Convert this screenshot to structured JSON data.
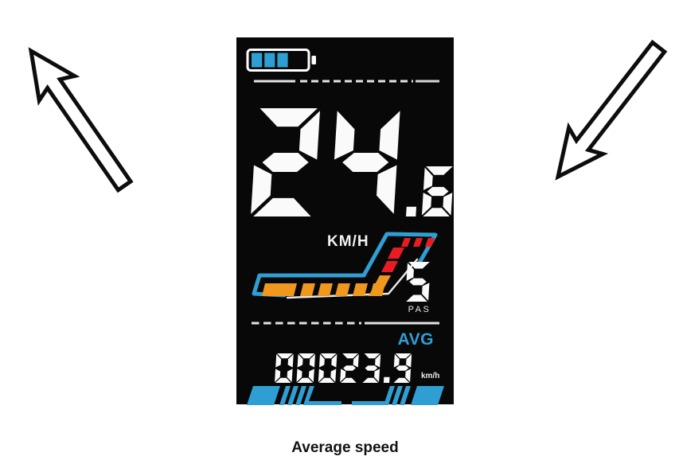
{
  "display": {
    "battery": {
      "segments_filled": 3,
      "segments_total": 4
    },
    "speed": {
      "value": "24.6",
      "integer_part": "24",
      "fraction_part": ".6",
      "unit": "KM/H"
    },
    "assist": {
      "level": "5",
      "label": "PAS"
    },
    "gauge": {
      "orange_small_bars": 5,
      "red_diagonal_bars": 2,
      "red_top_tiles": 3
    },
    "average": {
      "label": "AVG",
      "value": "00023.9",
      "unit": "km/h"
    }
  },
  "annotations": {
    "left_arrow": "arrow-up-left",
    "right_arrow": "arrow-down-left"
  },
  "caption": "Average speed",
  "colors": {
    "accent_blue": "#2F9FD3",
    "orange": "#F0981E",
    "red": "#E91C23",
    "digit_white": "#FAFAFA",
    "line_gray": "#E3E3E3",
    "display_bg": "#080808"
  }
}
